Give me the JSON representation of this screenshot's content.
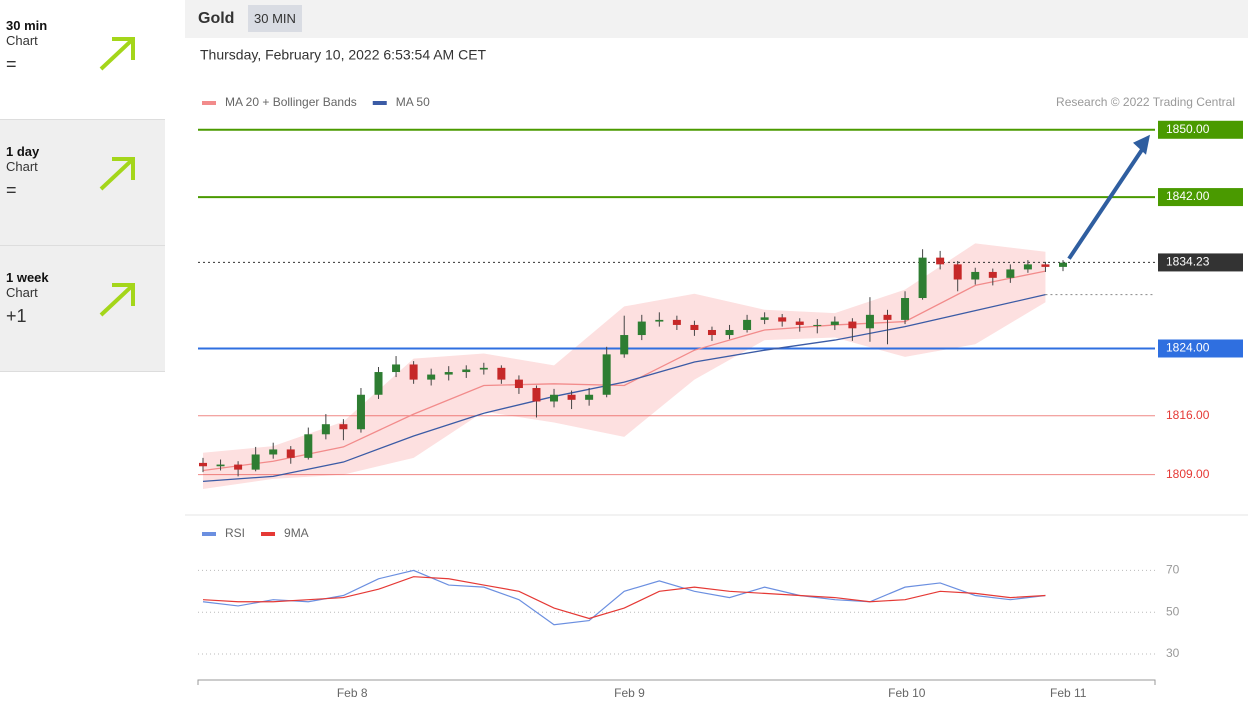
{
  "sidebar": [
    {
      "timeframe": "30 min",
      "label": "Chart",
      "sign": "="
    },
    {
      "timeframe": "1 day",
      "label": "Chart",
      "sign": "="
    },
    {
      "timeframe": "1 week",
      "label": "Chart",
      "sign": "+1"
    }
  ],
  "header": {
    "instrument": "Gold",
    "timeframe": "30 MIN"
  },
  "chart_data": {
    "type": "candlestick",
    "subtitle": "Thursday, February 10, 2022 6:53:54 AM CET",
    "credit": "Research © 2022 Trading Central",
    "up_color": "#2e7d32",
    "down_color": "#c62828",
    "ohlc": [
      [
        1810.4,
        1811.0,
        1809.3,
        1810.0
      ],
      [
        1810.0,
        1810.8,
        1809.5,
        1810.2
      ],
      [
        1810.2,
        1810.6,
        1808.8,
        1809.6
      ],
      [
        1809.6,
        1812.3,
        1809.4,
        1811.4
      ],
      [
        1811.4,
        1812.8,
        1810.9,
        1812.0
      ],
      [
        1812.0,
        1812.4,
        1810.3,
        1811.0
      ],
      [
        1811.0,
        1814.6,
        1810.8,
        1813.8
      ],
      [
        1813.8,
        1816.2,
        1813.2,
        1815.0
      ],
      [
        1815.0,
        1815.6,
        1813.1,
        1814.4
      ],
      [
        1814.4,
        1819.3,
        1814.0,
        1818.5
      ],
      [
        1818.5,
        1821.8,
        1818.0,
        1821.2
      ],
      [
        1821.2,
        1823.1,
        1820.6,
        1822.1
      ],
      [
        1822.1,
        1822.5,
        1819.8,
        1820.3
      ],
      [
        1820.3,
        1821.6,
        1819.6,
        1820.9
      ],
      [
        1820.9,
        1821.9,
        1820.2,
        1821.2
      ],
      [
        1821.2,
        1822.0,
        1820.5,
        1821.5
      ],
      [
        1821.5,
        1822.3,
        1820.9,
        1821.7
      ],
      [
        1821.7,
        1822.0,
        1819.8,
        1820.3
      ],
      [
        1820.3,
        1820.8,
        1818.6,
        1819.3
      ],
      [
        1819.3,
        1819.6,
        1815.8,
        1817.7
      ],
      [
        1817.7,
        1819.2,
        1817.0,
        1818.5
      ],
      [
        1818.5,
        1819.0,
        1816.8,
        1817.9
      ],
      [
        1817.9,
        1819.3,
        1817.2,
        1818.5
      ],
      [
        1818.5,
        1824.2,
        1818.2,
        1823.3
      ],
      [
        1823.3,
        1827.9,
        1822.9,
        1825.6
      ],
      [
        1825.6,
        1828.0,
        1825.0,
        1827.2
      ],
      [
        1827.2,
        1828.3,
        1826.6,
        1827.4
      ],
      [
        1827.4,
        1827.9,
        1826.2,
        1826.8
      ],
      [
        1826.8,
        1827.3,
        1825.5,
        1826.2
      ],
      [
        1826.2,
        1826.6,
        1824.9,
        1825.6
      ],
      [
        1825.6,
        1826.8,
        1825.1,
        1826.2
      ],
      [
        1826.2,
        1828.0,
        1825.9,
        1827.4
      ],
      [
        1827.4,
        1828.3,
        1826.9,
        1827.7
      ],
      [
        1827.7,
        1828.1,
        1826.6,
        1827.2
      ],
      [
        1827.2,
        1827.6,
        1826.0,
        1826.8
      ],
      [
        1826.8,
        1827.5,
        1825.8,
        1826.8
      ],
      [
        1826.8,
        1827.8,
        1826.2,
        1827.2
      ],
      [
        1827.2,
        1827.6,
        1824.9,
        1826.4
      ],
      [
        1826.4,
        1830.1,
        1824.8,
        1828.0
      ],
      [
        1828.0,
        1828.6,
        1824.5,
        1827.4
      ],
      [
        1827.4,
        1830.8,
        1826.9,
        1830.0
      ],
      [
        1830.0,
        1835.8,
        1829.8,
        1834.8
      ],
      [
        1834.8,
        1835.6,
        1833.4,
        1834.0
      ],
      [
        1834.0,
        1834.4,
        1830.8,
        1832.2
      ],
      [
        1832.2,
        1833.6,
        1831.6,
        1833.1
      ],
      [
        1833.1,
        1833.5,
        1831.5,
        1832.4
      ],
      [
        1832.4,
        1834.0,
        1831.8,
        1833.4
      ],
      [
        1833.4,
        1834.5,
        1833.0,
        1834.0
      ],
      [
        1834.0,
        1834.3,
        1833.1,
        1833.7
      ],
      [
        1833.7,
        1834.5,
        1833.2,
        1834.2
      ]
    ],
    "xlim": [
      0,
      49
    ],
    "xticks": [
      {
        "value": 8.5,
        "label": "Feb 8"
      },
      {
        "value": 24.3,
        "label": "Feb 9"
      },
      {
        "value": 40.1,
        "label": "Feb 10"
      },
      {
        "value": 49.3,
        "label": "Feb 11"
      }
    ],
    "ylim": [
      1804.8,
      1851.4
    ],
    "overlays": {
      "x": [
        0,
        4,
        8,
        12,
        16,
        20,
        24,
        28,
        32,
        36,
        40,
        44,
        48
      ],
      "series": [
        {
          "name": "MA 20 + Bollinger Bands",
          "color": "#f28b8b",
          "values": [
            1809.5,
            1810.6,
            1812.3,
            1816.2,
            1819.6,
            1819.8,
            1819.6,
            1823.8,
            1826.2,
            1826.8,
            1827.2,
            1831.5,
            1833.2
          ]
        },
        {
          "name": "MA 50",
          "color": "#3b5ba5",
          "values": [
            1808.2,
            1808.8,
            1810.5,
            1813.6,
            1816.3,
            1818.3,
            1820.0,
            1822.4,
            1823.8,
            1825.0,
            1826.6,
            1828.5,
            1830.4
          ]
        }
      ],
      "band_color": "#fde0e0",
      "band_upper": [
        1811.6,
        1812.4,
        1815.3,
        1822.8,
        1823.4,
        1822.0,
        1829.0,
        1830.5,
        1828.6,
        1828.2,
        1831.0,
        1836.5,
        1835.5
      ],
      "band_lower": [
        1807.3,
        1808.5,
        1809.0,
        1811.0,
        1816.5,
        1815.2,
        1813.5,
        1820.3,
        1825.0,
        1825.3,
        1823.0,
        1824.5,
        1829.5
      ]
    },
    "levels": [
      {
        "value": 1850,
        "label": "1850.00",
        "color": "#4a9a00",
        "line": "solid",
        "label_box": true
      },
      {
        "value": 1842,
        "label": "1842.00",
        "color": "#4a9a00",
        "line": "solid",
        "label_box": true
      },
      {
        "value": 1834.23,
        "label": "1834.23",
        "color": "#333333",
        "line": "dotted",
        "label_box": true
      },
      {
        "value": 1824,
        "label": "1824.00",
        "color": "#2f6fe0",
        "line": "solid",
        "label_box": true
      },
      {
        "value": 1816,
        "label": "1816.00",
        "color": "#e53935",
        "line": "solid",
        "label_box": false
      },
      {
        "value": 1809,
        "label": "1809.00",
        "color": "#e53935",
        "line": "solid",
        "label_box": false
      }
    ],
    "rsi": {
      "x": [
        0,
        2,
        4,
        6,
        8,
        10,
        12,
        14,
        16,
        18,
        20,
        22,
        24,
        26,
        28,
        30,
        32,
        34,
        36,
        38,
        40,
        42,
        44,
        46,
        48
      ],
      "ylim": [
        25,
        80
      ],
      "yticks": [
        70,
        50,
        30
      ],
      "series": [
        {
          "name": "RSI",
          "color": "#6b8fe0",
          "values": [
            55,
            53,
            56,
            55,
            58,
            66,
            70,
            63,
            62,
            56,
            44,
            46,
            60,
            65,
            60,
            57,
            62,
            58,
            56,
            55,
            62,
            64,
            58,
            56,
            58
          ]
        },
        {
          "name": "9MA",
          "color": "#e53935",
          "values": [
            56,
            55,
            55,
            56,
            57,
            61,
            67,
            66,
            63,
            60,
            52,
            47,
            52,
            60,
            62,
            60,
            59,
            58,
            57,
            55,
            56,
            60,
            59,
            57,
            58
          ]
        }
      ]
    }
  }
}
